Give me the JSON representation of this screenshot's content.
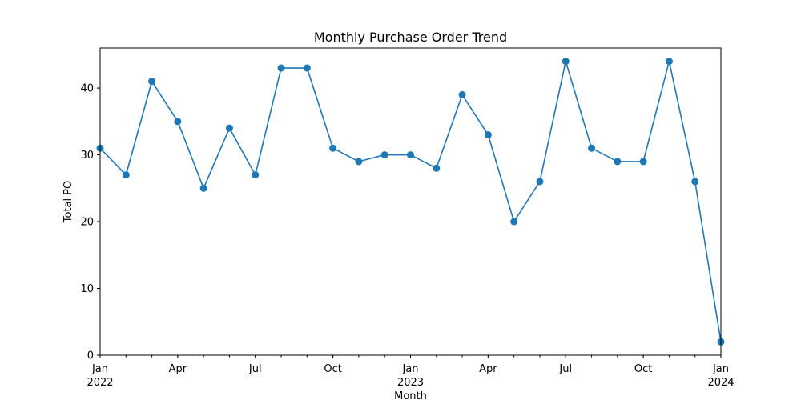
{
  "chart_data": {
    "type": "line",
    "title": "Monthly Purchase Order Trend",
    "xlabel": "Month",
    "ylabel": "Total PO",
    "xlim": [
      "2022-01",
      "2024-01"
    ],
    "ylim": [
      0,
      46
    ],
    "x": [
      "2022-01",
      "2022-02",
      "2022-03",
      "2022-04",
      "2022-05",
      "2022-06",
      "2022-07",
      "2022-08",
      "2022-09",
      "2022-10",
      "2022-11",
      "2022-12",
      "2023-01",
      "2023-02",
      "2023-03",
      "2023-04",
      "2023-05",
      "2023-06",
      "2023-07",
      "2023-08",
      "2023-09",
      "2023-10",
      "2023-11",
      "2023-12",
      "2024-01"
    ],
    "series": [
      {
        "values": [
          31,
          27,
          41,
          35,
          25,
          34,
          27,
          43,
          43,
          31,
          29,
          30,
          30,
          28,
          39,
          33,
          20,
          26,
          44,
          31,
          29,
          29,
          44,
          26,
          2
        ]
      }
    ],
    "yticks": [
      0,
      10,
      20,
      30,
      40
    ],
    "xticks_major": [
      {
        "x": "2022-01",
        "label": "Jan",
        "year": "2022"
      },
      {
        "x": "2022-04",
        "label": "Apr",
        "year": ""
      },
      {
        "x": "2022-07",
        "label": "Jul",
        "year": ""
      },
      {
        "x": "2022-10",
        "label": "Oct",
        "year": ""
      },
      {
        "x": "2023-01",
        "label": "Jan",
        "year": "2023"
      },
      {
        "x": "2023-04",
        "label": "Apr",
        "year": ""
      },
      {
        "x": "2023-07",
        "label": "Jul",
        "year": ""
      },
      {
        "x": "2023-10",
        "label": "Oct",
        "year": ""
      },
      {
        "x": "2024-01",
        "label": "Jan",
        "year": "2024"
      }
    ],
    "grid": false,
    "legend": "none",
    "line_color": "#1f77b4"
  }
}
